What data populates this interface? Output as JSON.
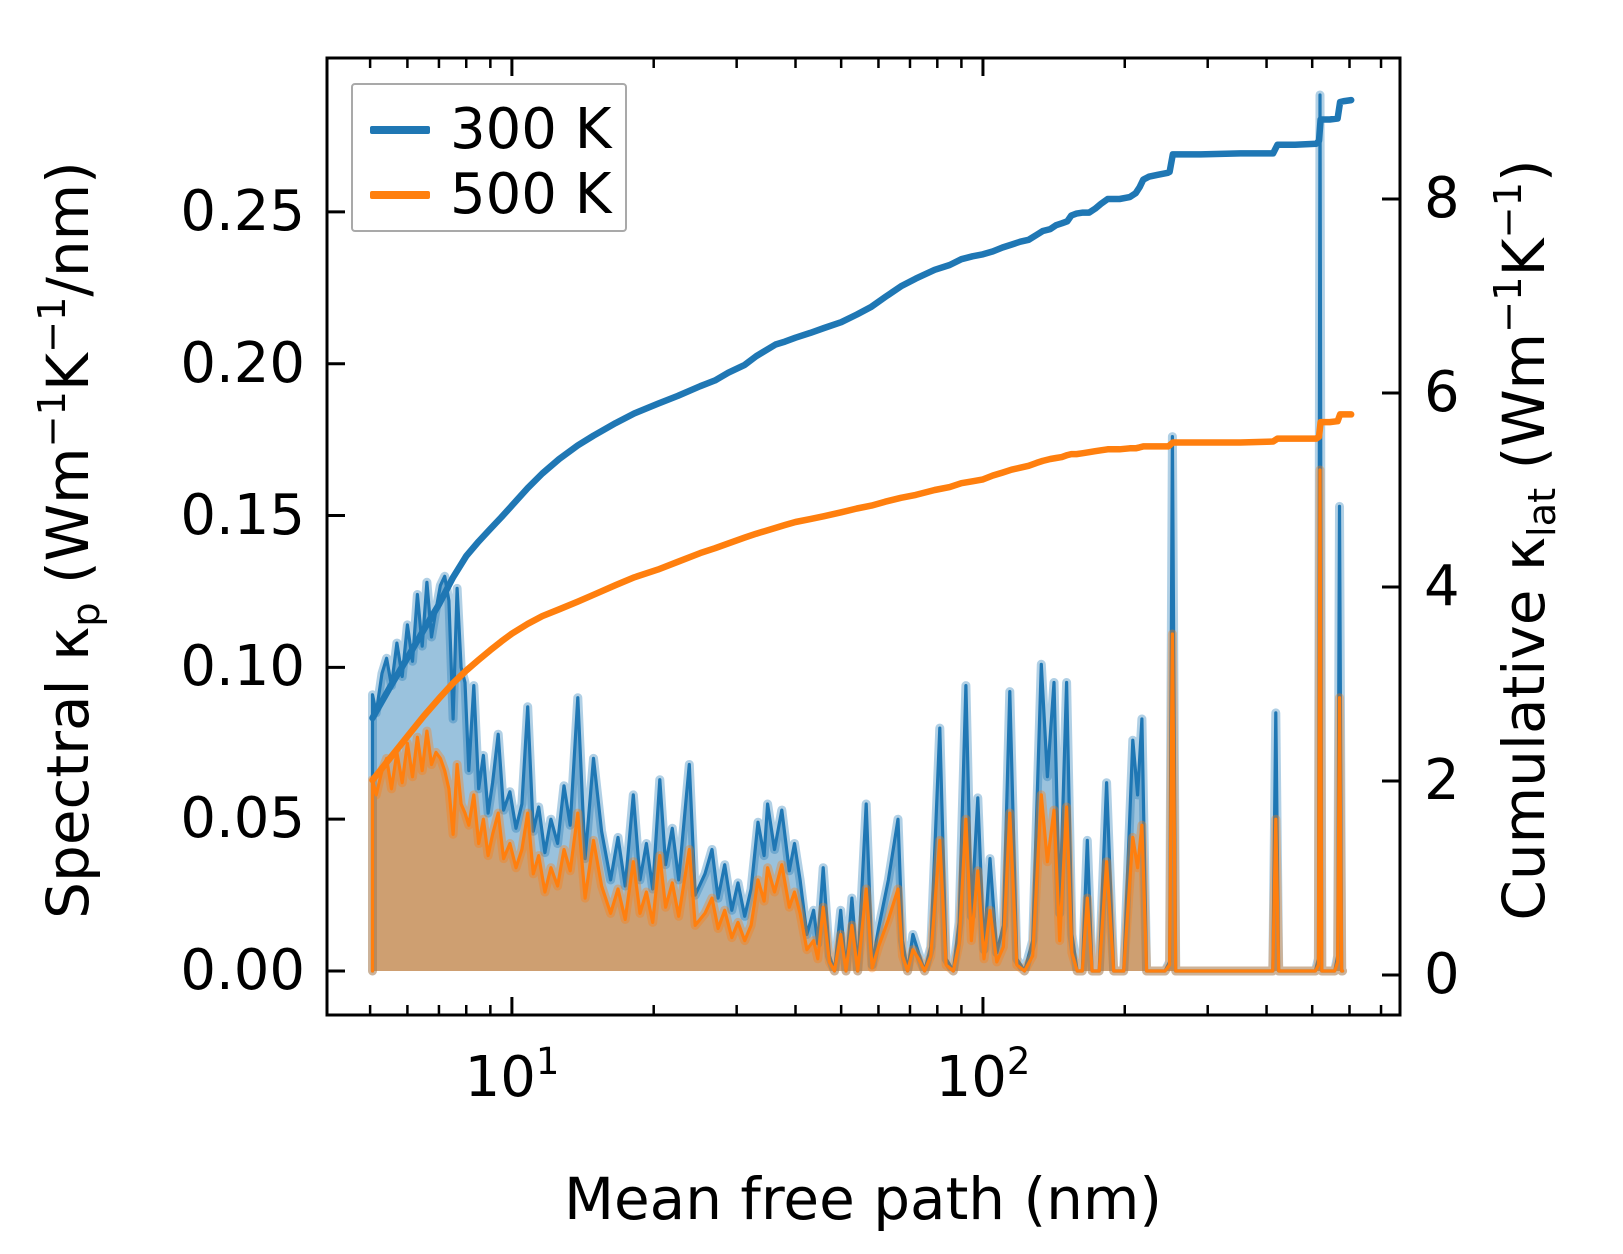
{
  "figure": {
    "background": "#ffffff"
  },
  "legend": {
    "items": [
      {
        "label": "300 K",
        "color": "#1f77b4"
      },
      {
        "label": "500 K",
        "color": "#ff7f0e"
      }
    ]
  },
  "labels": {
    "x_axis": "Mean free path (nm)",
    "y_left": {
      "p0": "Spectral κ",
      "sub": "p",
      "p1": " (Wm",
      "sup1": "−1",
      "p2": "K",
      "sup2": "−1",
      "p3": "/nm)"
    },
    "y_right": {
      "p0": "Cumulative κ",
      "sub": "lat",
      "p1": " (Wm",
      "sup1": "−1",
      "p2": "K",
      "sup2": "−1",
      "p3": ")"
    }
  },
  "ticks": {
    "y_left": [
      "0.00",
      "0.05",
      "0.10",
      "0.15",
      "0.20",
      "0.25"
    ],
    "y_right": [
      "0",
      "2",
      "4",
      "6",
      "8"
    ],
    "x": [
      {
        "base": "10",
        "exp": "1"
      },
      {
        "base": "10",
        "exp": "2"
      }
    ]
  },
  "chart_data": {
    "type": "area",
    "subtype": "spectral areas (left axis) + cumulative lines (right axis), dual y-axis, log x",
    "title": "",
    "xlabel": "Mean free path (nm)",
    "x_axis": {
      "scale": "log",
      "range": [
        4.05,
        768
      ],
      "major_ticks": [
        10,
        100
      ],
      "minor_ticks": [
        5,
        6,
        7,
        8,
        9,
        20,
        30,
        40,
        50,
        60,
        70,
        80,
        90,
        200,
        300,
        400,
        500,
        600,
        700
      ]
    },
    "y_left": {
      "label": "Spectral κp (Wm−1K−1/nm)",
      "range": [
        -0.0145,
        0.3007
      ],
      "ticks": [
        0,
        0.05,
        0.1,
        0.15,
        0.2,
        0.25
      ]
    },
    "y_right": {
      "label": "Cumulative κlat (Wm−1K−1)",
      "range": [
        -0.412,
        9.454
      ],
      "ticks": [
        0,
        2,
        4,
        6,
        8
      ]
    },
    "grid": false,
    "legend_position": "upper left",
    "series": [
      {
        "name": "300 K",
        "color": "#1f77b4",
        "fill_alpha": 0.45,
        "halo_alpha": 0.35
      },
      {
        "name": "500 K",
        "color": "#ff7f0e",
        "fill_alpha": 0.52,
        "halo_alpha": 0.35
      }
    ],
    "spectral_points_format": [
      "mfp_nm",
      "kp_300K",
      "kp_500K"
    ],
    "spectral_points": [
      [
        5.06,
        0.091,
        0.063
      ],
      [
        5.15,
        0.085,
        0.058
      ],
      [
        5.3,
        0.098,
        0.066
      ],
      [
        5.42,
        0.103,
        0.07
      ],
      [
        5.55,
        0.094,
        0.06
      ],
      [
        5.7,
        0.108,
        0.072
      ],
      [
        5.85,
        0.097,
        0.062
      ],
      [
        6.0,
        0.114,
        0.075
      ],
      [
        6.15,
        0.102,
        0.064
      ],
      [
        6.3,
        0.124,
        0.077
      ],
      [
        6.45,
        0.107,
        0.066
      ],
      [
        6.6,
        0.128,
        0.079
      ],
      [
        6.75,
        0.11,
        0.068
      ],
      [
        6.9,
        0.119,
        0.072
      ],
      [
        7.05,
        0.127,
        0.07
      ],
      [
        7.2,
        0.13,
        0.066
      ],
      [
        7.35,
        0.122,
        0.06
      ],
      [
        7.5,
        0.083,
        0.045
      ],
      [
        7.65,
        0.126,
        0.068
      ],
      [
        7.8,
        0.1,
        0.055
      ],
      [
        7.95,
        0.095,
        0.052
      ],
      [
        8.1,
        0.066,
        0.048
      ],
      [
        8.3,
        0.094,
        0.058
      ],
      [
        8.5,
        0.06,
        0.042
      ],
      [
        8.7,
        0.071,
        0.05
      ],
      [
        8.9,
        0.052,
        0.038
      ],
      [
        9.1,
        0.062,
        0.045
      ],
      [
        9.35,
        0.078,
        0.052
      ],
      [
        9.6,
        0.053,
        0.037
      ],
      [
        9.9,
        0.059,
        0.042
      ],
      [
        10.2,
        0.047,
        0.034
      ],
      [
        10.5,
        0.055,
        0.04
      ],
      [
        10.8,
        0.087,
        0.052
      ],
      [
        11.1,
        0.046,
        0.032
      ],
      [
        11.4,
        0.054,
        0.038
      ],
      [
        11.75,
        0.039,
        0.026
      ],
      [
        12.1,
        0.05,
        0.034
      ],
      [
        12.5,
        0.042,
        0.028
      ],
      [
        12.9,
        0.061,
        0.04
      ],
      [
        13.3,
        0.048,
        0.033
      ],
      [
        13.8,
        0.09,
        0.052
      ],
      [
        14.3,
        0.037,
        0.024
      ],
      [
        14.9,
        0.07,
        0.043
      ],
      [
        15.5,
        0.046,
        0.028
      ],
      [
        16.2,
        0.03,
        0.019
      ],
      [
        16.8,
        0.044,
        0.027
      ],
      [
        17.4,
        0.028,
        0.017
      ],
      [
        18.1,
        0.058,
        0.036
      ],
      [
        18.7,
        0.03,
        0.019
      ],
      [
        19.3,
        0.042,
        0.026
      ],
      [
        19.9,
        0.027,
        0.016
      ],
      [
        20.6,
        0.063,
        0.038
      ],
      [
        21.2,
        0.035,
        0.021
      ],
      [
        21.9,
        0.047,
        0.029
      ],
      [
        22.6,
        0.03,
        0.018
      ],
      [
        23.8,
        0.068,
        0.04
      ],
      [
        24.5,
        0.025,
        0.015
      ],
      [
        25.7,
        0.032,
        0.019
      ],
      [
        26.6,
        0.04,
        0.024
      ],
      [
        27.4,
        0.024,
        0.014
      ],
      [
        28.3,
        0.035,
        0.02
      ],
      [
        29.3,
        0.02,
        0.011
      ],
      [
        30.2,
        0.029,
        0.016
      ],
      [
        31.2,
        0.018,
        0.01
      ],
      [
        32.2,
        0.027,
        0.015
      ],
      [
        33.3,
        0.049,
        0.03
      ],
      [
        34.3,
        0.038,
        0.023
      ],
      [
        34.9,
        0.055,
        0.034
      ],
      [
        36.1,
        0.04,
        0.026
      ],
      [
        37.4,
        0.053,
        0.035
      ],
      [
        38.8,
        0.033,
        0.021
      ],
      [
        39.8,
        0.042,
        0.026
      ],
      [
        40.9,
        0.03,
        0.019
      ],
      [
        42.3,
        0.012,
        0.007
      ],
      [
        43.7,
        0.02,
        0.01
      ],
      [
        44.6,
        0.009,
        0.004
      ],
      [
        45.8,
        0.034,
        0.021
      ],
      [
        47.2,
        0.005,
        0.003
      ],
      [
        48.4,
        0.0,
        0.0
      ],
      [
        49.9,
        0.02,
        0.012
      ],
      [
        51.2,
        0.0,
        0.0
      ],
      [
        52.7,
        0.024,
        0.015
      ],
      [
        54.2,
        0.0,
        0.0
      ],
      [
        56.5,
        0.055,
        0.027
      ],
      [
        58.2,
        0.002,
        0.001
      ],
      [
        60.0,
        0.014,
        0.008
      ],
      [
        63.0,
        0.03,
        0.017
      ],
      [
        66.0,
        0.05,
        0.027
      ],
      [
        67.5,
        0.01,
        0.005
      ],
      [
        69.2,
        0.0,
        0.0
      ],
      [
        71.0,
        0.012,
        0.007
      ],
      [
        73.0,
        0.006,
        0.004
      ],
      [
        75.2,
        0.0,
        0.0
      ],
      [
        77.5,
        0.008,
        0.005
      ],
      [
        81.0,
        0.08,
        0.043
      ],
      [
        83.5,
        0.004,
        0.002
      ],
      [
        86.5,
        0.0,
        0.0
      ],
      [
        89.0,
        0.016,
        0.009
      ],
      [
        92.0,
        0.094,
        0.05
      ],
      [
        94.5,
        0.018,
        0.01
      ],
      [
        97.5,
        0.057,
        0.033
      ],
      [
        100.5,
        0.007,
        0.004
      ],
      [
        103.5,
        0.037,
        0.02
      ],
      [
        107.0,
        0.006,
        0.003
      ],
      [
        110.5,
        0.015,
        0.008
      ],
      [
        114.0,
        0.092,
        0.052
      ],
      [
        118.0,
        0.004,
        0.002
      ],
      [
        122.5,
        0.0,
        0.0
      ],
      [
        127.5,
        0.01,
        0.005
      ],
      [
        133.0,
        0.101,
        0.058
      ],
      [
        137.0,
        0.064,
        0.036
      ],
      [
        141.5,
        0.095,
        0.053
      ],
      [
        145.5,
        0.019,
        0.01
      ],
      [
        150.5,
        0.095,
        0.054
      ],
      [
        154.5,
        0.012,
        0.006
      ],
      [
        158.5,
        0.0,
        0.0
      ],
      [
        162.5,
        0.0,
        0.0
      ],
      [
        166.5,
        0.043,
        0.024
      ],
      [
        170.5,
        0.0,
        0.0
      ],
      [
        176.5,
        0.0,
        0.0
      ],
      [
        183.0,
        0.062,
        0.036
      ],
      [
        189.5,
        0.0,
        0.0
      ],
      [
        199.0,
        0.0,
        0.0
      ],
      [
        208.0,
        0.076,
        0.044
      ],
      [
        213.0,
        0.058,
        0.034
      ],
      [
        217.5,
        0.083,
        0.048
      ],
      [
        222.5,
        0.0,
        0.0
      ],
      [
        231.5,
        0.0,
        0.0
      ],
      [
        243.5,
        0.0,
        0.0
      ],
      [
        249.0,
        0.003,
        0.002
      ],
      [
        252.5,
        0.176,
        0.111
      ],
      [
        256.5,
        0.0,
        0.0
      ],
      [
        266.0,
        0.0,
        0.0
      ],
      [
        290.0,
        0.0,
        0.0
      ],
      [
        330.0,
        0.0,
        0.0
      ],
      [
        375.0,
        0.0,
        0.0
      ],
      [
        412.5,
        0.0,
        0.0
      ],
      [
        418.5,
        0.085,
        0.05
      ],
      [
        424.5,
        0.0,
        0.0
      ],
      [
        445.0,
        0.0,
        0.0
      ],
      [
        480.0,
        0.0,
        0.0
      ],
      [
        508.0,
        0.0,
        0.0
      ],
      [
        515.5,
        0.004,
        0.002
      ],
      [
        519.5,
        0.2885,
        0.165
      ],
      [
        524.0,
        0.0,
        0.0
      ],
      [
        536.0,
        0.0,
        0.0
      ],
      [
        558.0,
        0.0,
        0.0
      ],
      [
        566.5,
        0.005,
        0.003
      ],
      [
        571.5,
        0.153,
        0.09
      ],
      [
        577.5,
        0.0,
        0.0
      ],
      [
        580.0,
        0.0,
        0.0
      ]
    ],
    "cumulative_points_format": [
      "mfp_nm",
      "klat_300K",
      "klat_500K"
    ],
    "cumulative_points": [
      [
        5.06,
        2.65,
        2.01
      ],
      [
        5.5,
        2.96,
        2.23
      ],
      [
        6,
        3.27,
        2.46
      ],
      [
        6.5,
        3.56,
        2.67
      ],
      [
        7,
        3.82,
        2.85
      ],
      [
        7.5,
        4.1,
        3.01
      ],
      [
        8,
        4.32,
        3.14
      ],
      [
        8.5,
        4.47,
        3.25
      ],
      [
        9,
        4.6,
        3.35
      ],
      [
        9.5,
        4.72,
        3.44
      ],
      [
        10,
        4.84,
        3.52
      ],
      [
        10.8,
        5.02,
        3.62
      ],
      [
        11.6,
        5.17,
        3.7
      ],
      [
        12.6,
        5.32,
        3.77
      ],
      [
        13.8,
        5.46,
        3.85
      ],
      [
        14.9,
        5.56,
        3.92
      ],
      [
        16.6,
        5.69,
        4.02
      ],
      [
        18.2,
        5.79,
        4.1
      ],
      [
        20.4,
        5.89,
        4.18
      ],
      [
        22.5,
        5.97,
        4.26
      ],
      [
        25.1,
        6.07,
        4.35
      ],
      [
        27,
        6.13,
        4.4
      ],
      [
        28.8,
        6.21,
        4.45
      ],
      [
        31.2,
        6.29,
        4.51
      ],
      [
        33,
        6.38,
        4.55
      ],
      [
        36.3,
        6.5,
        4.61
      ],
      [
        38,
        6.53,
        4.64
      ],
      [
        40,
        6.57,
        4.67
      ],
      [
        43,
        6.62,
        4.7
      ],
      [
        46,
        6.67,
        4.73
      ],
      [
        50,
        6.73,
        4.77
      ],
      [
        54,
        6.81,
        4.81
      ],
      [
        58,
        6.89,
        4.84
      ],
      [
        62,
        6.99,
        4.88
      ],
      [
        67,
        7.1,
        4.92
      ],
      [
        72,
        7.18,
        4.95
      ],
      [
        79,
        7.27,
        5.0
      ],
      [
        85,
        7.32,
        5.03
      ],
      [
        90,
        7.38,
        5.07
      ],
      [
        95,
        7.41,
        5.09
      ],
      [
        100,
        7.43,
        5.11
      ],
      [
        105,
        7.46,
        5.15
      ],
      [
        110,
        7.5,
        5.18
      ],
      [
        115,
        7.53,
        5.21
      ],
      [
        120,
        7.56,
        5.23
      ],
      [
        125,
        7.58,
        5.25
      ],
      [
        130,
        7.63,
        5.28
      ],
      [
        134,
        7.67,
        5.3
      ],
      [
        139,
        7.69,
        5.32
      ],
      [
        143,
        7.73,
        5.33
      ],
      [
        147,
        7.75,
        5.34
      ],
      [
        151,
        7.77,
        5.36
      ],
      [
        154,
        7.83,
        5.37
      ],
      [
        158,
        7.85,
        5.37
      ],
      [
        163,
        7.86,
        5.38
      ],
      [
        168,
        7.86,
        5.39
      ],
      [
        173,
        7.9,
        5.4
      ],
      [
        178,
        7.95,
        5.41
      ],
      [
        184,
        8.0,
        5.42
      ],
      [
        195,
        8.0,
        5.42
      ],
      [
        205,
        8.02,
        5.43
      ],
      [
        211,
        8.06,
        5.43
      ],
      [
        215,
        8.12,
        5.44
      ],
      [
        219,
        8.2,
        5.45
      ],
      [
        225,
        8.23,
        5.45
      ],
      [
        235,
        8.25,
        5.45
      ],
      [
        247,
        8.27,
        5.45
      ],
      [
        249,
        8.28,
        5.46
      ],
      [
        253,
        8.46,
        5.49
      ],
      [
        290,
        8.46,
        5.49
      ],
      [
        352,
        8.47,
        5.49
      ],
      [
        413,
        8.47,
        5.5
      ],
      [
        422,
        8.56,
        5.53
      ],
      [
        460,
        8.56,
        5.53
      ],
      [
        510,
        8.57,
        5.53
      ],
      [
        517,
        8.6,
        5.55
      ],
      [
        521,
        8.82,
        5.7
      ],
      [
        545,
        8.82,
        5.7
      ],
      [
        566,
        8.83,
        5.71
      ],
      [
        573,
        9.0,
        5.78
      ],
      [
        585,
        9.01,
        5.78
      ],
      [
        605,
        9.02,
        5.78
      ]
    ]
  }
}
